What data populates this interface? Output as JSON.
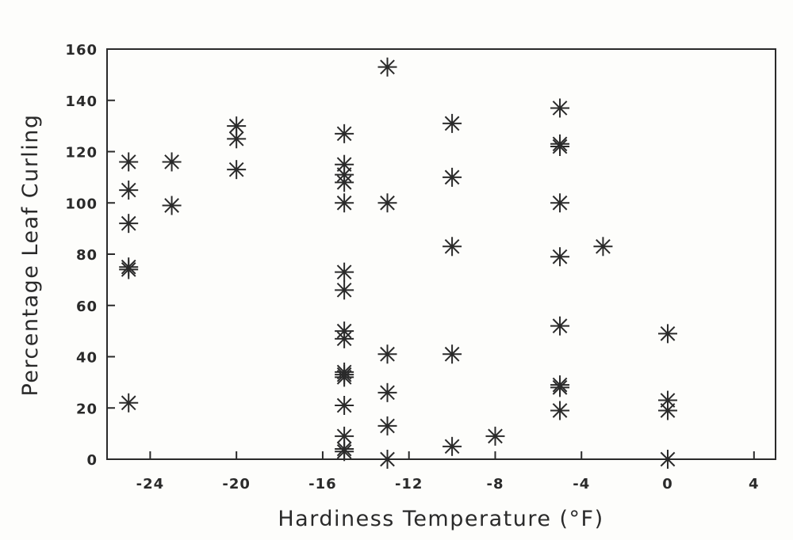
{
  "chart_data": {
    "type": "scatter",
    "title": "",
    "xlabel": "Hardiness Temperature (°F)",
    "ylabel": "Percentage Leaf Curling",
    "xlim": [
      -26,
      5
    ],
    "ylim": [
      0,
      160
    ],
    "xticks": [
      -24,
      -20,
      -16,
      -12,
      -8,
      -4,
      0,
      4
    ],
    "yticks": [
      0,
      20,
      40,
      60,
      80,
      100,
      120,
      140,
      160
    ],
    "grid": false,
    "marker": "asterisk",
    "color": "#2a2a2a",
    "points": [
      [
        -25,
        116
      ],
      [
        -25,
        105
      ],
      [
        -25,
        92
      ],
      [
        -25,
        75
      ],
      [
        -25,
        74
      ],
      [
        -25,
        22
      ],
      [
        -23,
        116
      ],
      [
        -23,
        99
      ],
      [
        -20,
        130
      ],
      [
        -20,
        125
      ],
      [
        -20,
        113
      ],
      [
        -15,
        127
      ],
      [
        -15,
        115
      ],
      [
        -15,
        111
      ],
      [
        -15,
        108
      ],
      [
        -15,
        100
      ],
      [
        -15,
        73
      ],
      [
        -15,
        66
      ],
      [
        -15,
        50
      ],
      [
        -15,
        47
      ],
      [
        -15,
        34
      ],
      [
        -15,
        33
      ],
      [
        -15,
        32
      ],
      [
        -15,
        21
      ],
      [
        -15,
        9
      ],
      [
        -15,
        4
      ],
      [
        -15,
        3
      ],
      [
        -13,
        153
      ],
      [
        -13,
        100
      ],
      [
        -13,
        41
      ],
      [
        -13,
        26
      ],
      [
        -13,
        13
      ],
      [
        -13,
        0
      ],
      [
        -10,
        131
      ],
      [
        -10,
        110
      ],
      [
        -10,
        83
      ],
      [
        -10,
        41
      ],
      [
        -10,
        5
      ],
      [
        -8,
        9
      ],
      [
        -5,
        137
      ],
      [
        -5,
        123
      ],
      [
        -5,
        122
      ],
      [
        -5,
        100
      ],
      [
        -5,
        79
      ],
      [
        -5,
        52
      ],
      [
        -5,
        29
      ],
      [
        -5,
        28
      ],
      [
        -5,
        19
      ],
      [
        -3,
        83
      ],
      [
        0,
        49
      ],
      [
        0,
        23
      ],
      [
        0,
        19
      ],
      [
        0,
        0
      ]
    ]
  }
}
